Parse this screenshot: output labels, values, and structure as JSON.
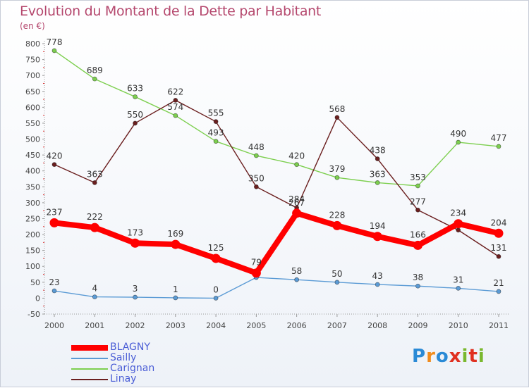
{
  "title": "Evolution du Montant de la Dette par Habitant",
  "subtitle": "(en €)",
  "logo": {
    "text": "Proxiti",
    "colors": [
      "#2a8ad6",
      "#f08c1e",
      "#2a8ad6",
      "#e03020",
      "#7ab82e",
      "#e03020",
      "#7ab82e"
    ]
  },
  "chart_data": {
    "type": "line",
    "x": [
      "2000",
      "2001",
      "2002",
      "2003",
      "2004",
      "2005",
      "2006",
      "2007",
      "2008",
      "2009",
      "2010",
      "2011"
    ],
    "ylim": [
      -50,
      800
    ],
    "yticks": [
      "-50",
      "0",
      "50",
      "100",
      "150",
      "200",
      "250",
      "300",
      "350",
      "400",
      "450",
      "500",
      "550",
      "600",
      "650",
      "700",
      "750",
      "800"
    ],
    "grid": false,
    "legend_position": "bottom-left",
    "series": [
      {
        "name": "BLAGNY",
        "color": "#ff0000",
        "values": [
          237,
          222,
          173,
          169,
          125,
          79,
          267,
          228,
          194,
          166,
          234,
          204
        ],
        "labels": [
          "237",
          "222",
          "173",
          "169",
          "125",
          "79",
          "267",
          "228",
          "194",
          "166",
          "234",
          "204"
        ]
      },
      {
        "name": "Sailly",
        "color": "#5b9bd5",
        "values": [
          23,
          4,
          3,
          1,
          0,
          65,
          58,
          50,
          43,
          38,
          31,
          21
        ],
        "labels": [
          "23",
          "4",
          "3",
          "1",
          "0",
          "",
          "58",
          "50",
          "43",
          "38",
          "31",
          "21"
        ]
      },
      {
        "name": "Carignan",
        "color": "#7dcf4f",
        "values": [
          778,
          689,
          633,
          574,
          493,
          448,
          420,
          379,
          363,
          353,
          490,
          477
        ],
        "labels": [
          "778",
          "689",
          "633",
          "574",
          "493",
          "448",
          "420",
          "379",
          "363",
          "353",
          "490",
          "477"
        ]
      },
      {
        "name": "Linay",
        "color": "#6b1f1f",
        "values": [
          420,
          363,
          550,
          622,
          555,
          350,
          284,
          568,
          438,
          277,
          214,
          131
        ],
        "labels": [
          "420",
          "363",
          "550",
          "622",
          "555",
          "350",
          "284",
          "568",
          "438",
          "277",
          "",
          "131"
        ]
      }
    ]
  }
}
